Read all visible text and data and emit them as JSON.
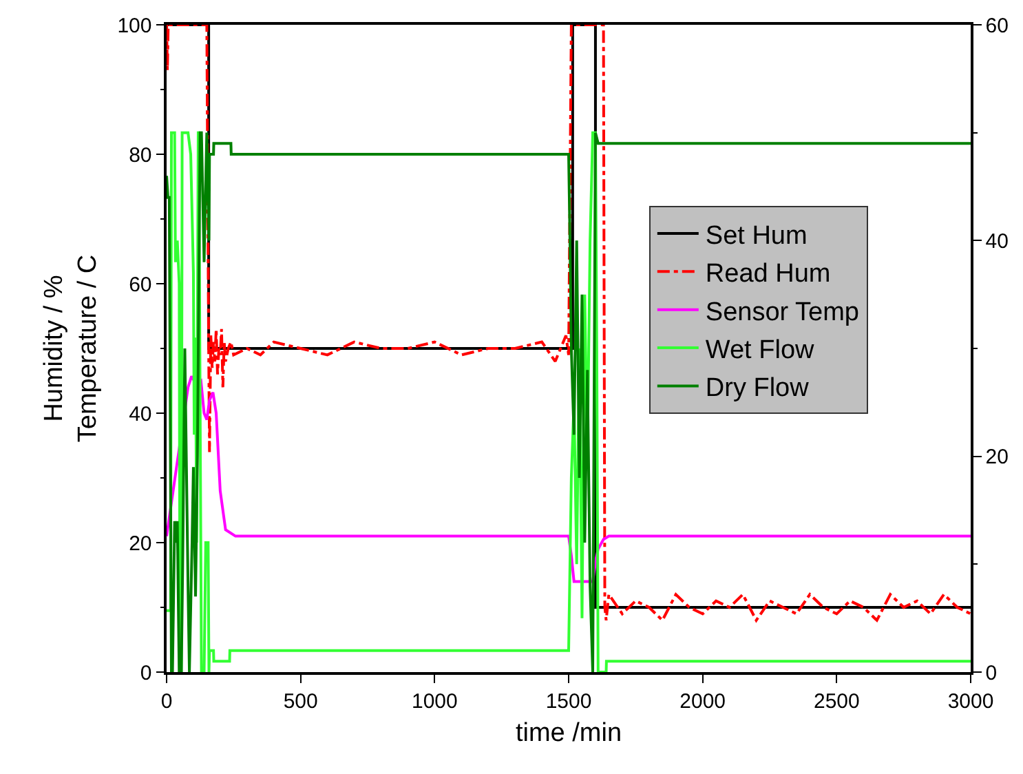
{
  "chart_data": {
    "type": "line",
    "xlabel": "time /min",
    "ylabel": "Humidity / %\nTemperature / C",
    "xlim": [
      0,
      3000
    ],
    "xticks": [
      0,
      500,
      1000,
      1500,
      2000,
      2500,
      3000
    ],
    "ylim": [
      0,
      100
    ],
    "yticks": [
      0,
      20,
      40,
      60,
      80,
      100
    ],
    "y2lim": [
      0,
      60
    ],
    "y2ticks": [
      0,
      20,
      40,
      60
    ],
    "grid": false,
    "legend": "right",
    "marker": "none",
    "series": [
      {
        "name": "Set Hum",
        "color": "#000000",
        "line_style": "solid",
        "x": [
          0,
          157,
          157,
          1515,
          1515,
          1600,
          1600,
          3000
        ],
        "values": [
          100,
          100,
          50,
          50,
          100,
          100,
          10,
          10
        ]
      },
      {
        "name": "Read Hum",
        "color": "#ff0000",
        "line_style": "dashed",
        "x": [
          0,
          3,
          6,
          150,
          157,
          160,
          165,
          170,
          175,
          180,
          185,
          190,
          195,
          200,
          205,
          210,
          215,
          220,
          230,
          240,
          250,
          300,
          350,
          400,
          500,
          600,
          700,
          800,
          900,
          1000,
          1100,
          1200,
          1300,
          1400,
          1450,
          1490,
          1500,
          1510,
          1520,
          1630,
          1635,
          1640,
          1650,
          1700,
          1750,
          1800,
          1850,
          1900,
          1950,
          2000,
          2050,
          2100,
          2150,
          2200,
          2250,
          2300,
          2350,
          2400,
          2450,
          2500,
          2550,
          2600,
          2650,
          2700,
          2750,
          2800,
          2850,
          2900,
          2950,
          3000
        ],
        "values": [
          100,
          93,
          100,
          100,
          50,
          34,
          52,
          47,
          51,
          48,
          53,
          46,
          50,
          49,
          53,
          44,
          51,
          48,
          50,
          51,
          49,
          50,
          49,
          51,
          50,
          49,
          51,
          50,
          50,
          51,
          49,
          50,
          50,
          51,
          48,
          52,
          49,
          100,
          100,
          100,
          10,
          8,
          12,
          9,
          11,
          10,
          8,
          12,
          10,
          9,
          11,
          10,
          12,
          8,
          11,
          10,
          9,
          12,
          10,
          9,
          11,
          10,
          8,
          12,
          10,
          11,
          9,
          12,
          10,
          9
        ]
      },
      {
        "name": "Sensor Temp",
        "color": "#ff00ff",
        "line_style": "solid",
        "x": [
          0,
          80,
          93,
          110,
          128,
          140,
          150,
          160,
          173,
          185,
          200,
          220,
          257,
          300,
          1000,
          1500,
          1510,
          1520,
          1540,
          1590,
          1600,
          1610,
          1630,
          1650,
          1700,
          3000
        ],
        "values": [
          21,
          44,
          45.7,
          44.5,
          45,
          40,
          39,
          42,
          43.2,
          40,
          28,
          22,
          21,
          21,
          21,
          21,
          18,
          14,
          14,
          14,
          17,
          19,
          20.5,
          21,
          21,
          21
        ]
      },
      {
        "name": "Wet Flow",
        "color": "#33ff33",
        "line_style": "solid",
        "axis": "y2",
        "x": [
          0,
          15,
          18,
          30,
          33,
          40,
          47,
          50,
          55,
          58,
          80,
          90,
          100,
          103,
          108,
          112,
          118,
          120,
          130,
          140,
          146,
          155,
          158,
          160,
          175,
          176,
          235,
          236,
          1500,
          1505,
          1510,
          1520,
          1530,
          1540,
          1550,
          1560,
          1570,
          1580,
          1590,
          1600,
          1605,
          1610,
          1640,
          1641,
          3000
        ],
        "values": [
          5.7,
          5.7,
          50,
          50,
          38,
          40,
          36,
          0,
          0,
          50,
          50,
          48,
          37,
          22,
          31,
          12,
          50,
          50,
          0,
          0,
          12,
          12,
          0,
          2,
          2,
          1,
          1,
          2,
          2,
          10,
          18,
          25,
          10,
          30,
          5,
          35,
          20,
          40,
          50,
          50,
          30,
          0,
          0,
          1,
          1
        ]
      },
      {
        "name": "Dry Flow",
        "color": "#008000",
        "line_style": "solid",
        "axis": "y2",
        "x": [
          0,
          5,
          10,
          18,
          22,
          30,
          33,
          40,
          47,
          50,
          55,
          60,
          68,
          80,
          85,
          95,
          100,
          108,
          115,
          125,
          130,
          140,
          150,
          158,
          160,
          175,
          176,
          240,
          241,
          1500,
          1505,
          1510,
          1520,
          1530,
          1540,
          1550,
          1560,
          1570,
          1580,
          1590,
          1600,
          1610,
          3000
        ],
        "values": [
          46,
          44,
          44,
          0,
          0,
          14,
          12,
          14,
          0,
          0,
          0,
          10,
          30,
          8,
          0,
          12,
          19,
          7,
          20,
          50,
          50,
          38,
          50,
          40,
          48,
          48,
          49,
          49,
          48,
          48,
          40,
          30,
          22,
          40,
          18,
          35,
          12,
          28,
          8,
          0,
          50,
          49,
          49
        ]
      }
    ]
  }
}
